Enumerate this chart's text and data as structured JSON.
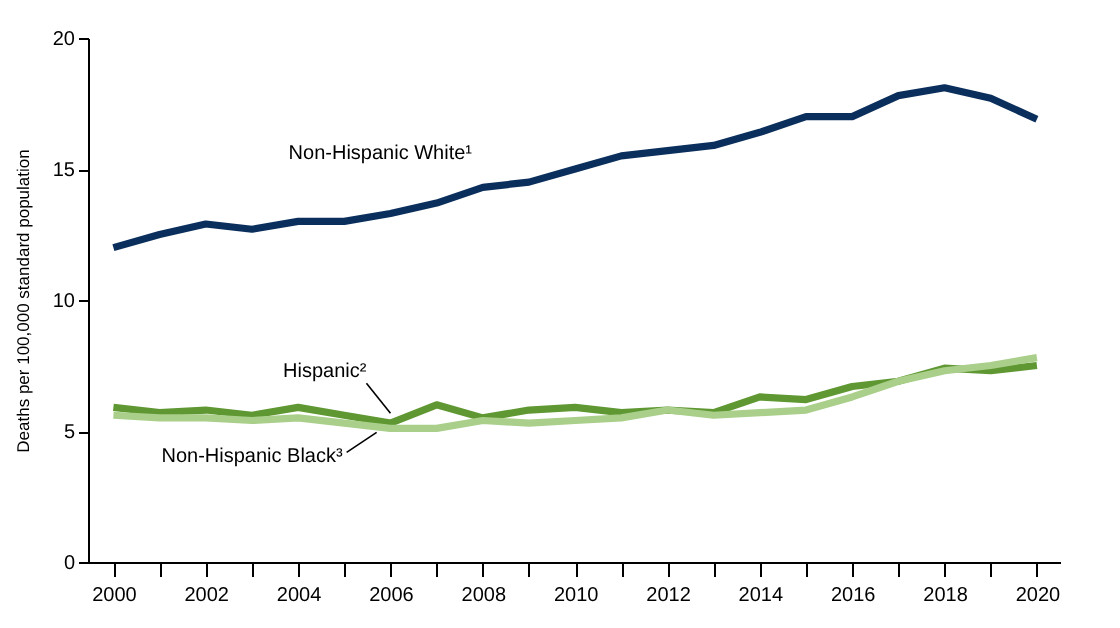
{
  "chart_data": {
    "type": "line",
    "ylabel": "Deaths per 100,000 standard population",
    "x": [
      2000,
      2001,
      2002,
      2003,
      2004,
      2005,
      2006,
      2007,
      2008,
      2009,
      2010,
      2011,
      2012,
      2013,
      2014,
      2015,
      2016,
      2017,
      2018,
      2019,
      2020
    ],
    "series": [
      {
        "name": "Non-Hispanic White¹",
        "color": "#0b2f5c",
        "values": [
          12.0,
          12.5,
          12.9,
          12.7,
          13.0,
          13.0,
          13.3,
          13.7,
          14.3,
          14.5,
          15.0,
          15.5,
          15.7,
          15.9,
          16.4,
          17.0,
          17.0,
          17.8,
          18.1,
          17.7,
          16.9
        ]
      },
      {
        "name": "Hispanic²",
        "color": "#5f9732",
        "values": [
          5.9,
          5.7,
          5.8,
          5.6,
          5.9,
          5.6,
          5.3,
          6.0,
          5.5,
          5.8,
          5.9,
          5.7,
          5.8,
          5.7,
          6.3,
          6.2,
          6.7,
          6.9,
          7.4,
          7.3,
          7.5
        ]
      },
      {
        "name": "Non-Hispanic Black³",
        "color": "#a9cf8a",
        "values": [
          5.6,
          5.5,
          5.5,
          5.4,
          5.5,
          5.3,
          5.1,
          5.1,
          5.4,
          5.3,
          5.4,
          5.5,
          5.8,
          5.6,
          5.7,
          5.8,
          6.3,
          6.9,
          7.3,
          7.5,
          7.8
        ]
      }
    ],
    "xlim": [
      1999.45,
      2020.5
    ],
    "xticks": [
      2000,
      {
        "value": 2001,
        "label": null
      },
      2002,
      {
        "value": 2003,
        "label": null
      },
      2004,
      {
        "value": 2005,
        "label": null
      },
      2006,
      {
        "value": 2007,
        "label": null
      },
      2008,
      {
        "value": 2009,
        "label": null
      },
      2010,
      {
        "value": 2011,
        "label": null
      },
      2012,
      {
        "value": 2013,
        "label": null
      },
      2014,
      {
        "value": 2015,
        "label": null
      },
      2016,
      {
        "value": 2017,
        "label": null
      },
      2018,
      {
        "value": 2019,
        "label": null
      },
      2020
    ],
    "ylim": [
      0,
      20
    ],
    "yticks": [
      0,
      5,
      10,
      15,
      20
    ],
    "grid": false,
    "legend": false,
    "line_style": "solid",
    "marker": "none"
  }
}
